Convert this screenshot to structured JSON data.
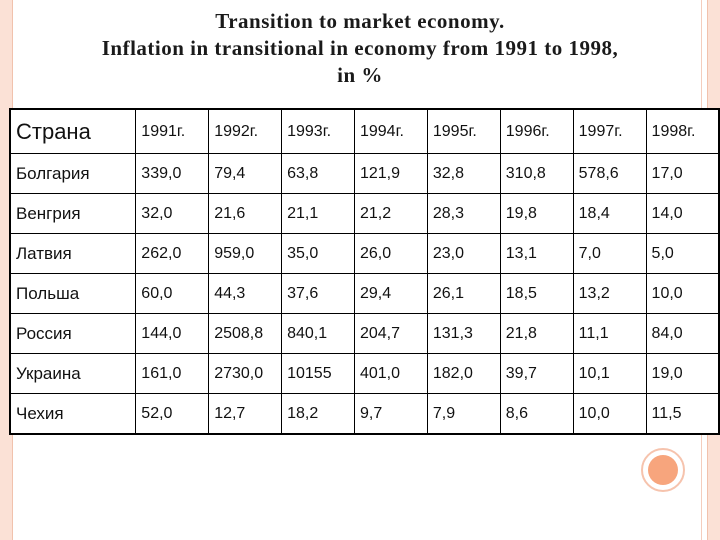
{
  "title": {
    "line1": "Transition to market economy.",
    "line2": "Inflation in transitional in economy from 1991 to 1998,",
    "line3": "in %"
  },
  "table": {
    "country_header": "Страна",
    "years": [
      "1991г.",
      "1992г.",
      "1993г.",
      "1994г.",
      "1995г.",
      "1996г.",
      "1997г.",
      "1998г."
    ],
    "rows": [
      {
        "country": "Болгария",
        "values": [
          "339,0",
          "79,4",
          "63,8",
          "121,9",
          "32,8",
          "310,8",
          "578,6",
          "17,0"
        ]
      },
      {
        "country": "Венгрия",
        "values": [
          "32,0",
          "21,6",
          "21,1",
          "21,2",
          "28,3",
          "19,8",
          "18,4",
          "14,0"
        ]
      },
      {
        "country": "Латвия",
        "values": [
          "262,0",
          "959,0",
          "35,0",
          "26,0",
          "23,0",
          "13,1",
          "7,0",
          "5,0"
        ]
      },
      {
        "country": "Польша",
        "values": [
          "60,0",
          "44,3",
          "37,6",
          "29,4",
          "26,1",
          "18,5",
          "13,2",
          "10,0"
        ]
      },
      {
        "country": "Россия",
        "values": [
          "144,0",
          "2508,8",
          "840,1",
          "204,7",
          "131,3",
          "21,8",
          "11,1",
          "84,0"
        ]
      },
      {
        "country": "Украина",
        "values": [
          "161,0",
          "2730,0",
          "10155",
          "401,0",
          "182,0",
          "39,7",
          "10,1",
          "19,0"
        ]
      },
      {
        "country": "Чехия",
        "values": [
          "52,0",
          "12,7",
          "18,2",
          "9,7",
          "7,9",
          "8,6",
          "10,0",
          "11,5"
        ]
      }
    ]
  },
  "colors": {
    "frame": "#fbe1d6",
    "accent_circle": "#f7a57d"
  }
}
